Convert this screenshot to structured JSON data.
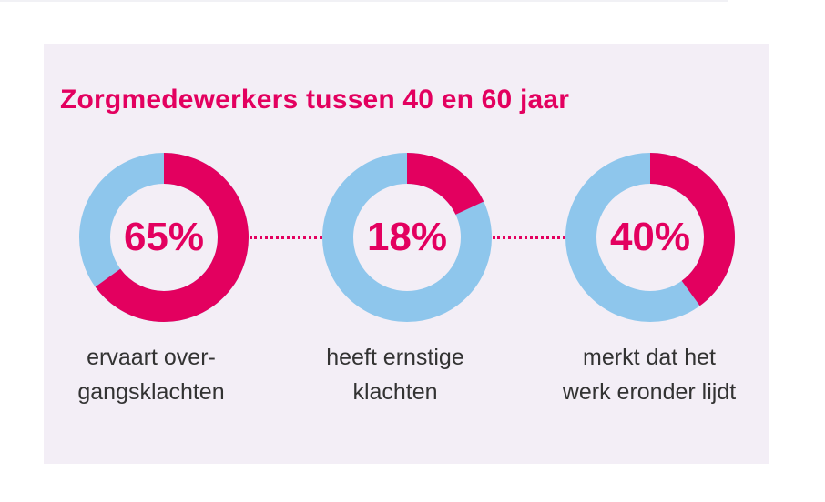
{
  "colors": {
    "accent": "#e3005f",
    "track": "#8ec6ec",
    "background": "#f3eef6",
    "text": "#333333"
  },
  "chart_data": {
    "type": "pie",
    "title": "Zorgmedewerkers tussen 40 en 60 jaar",
    "items": [
      {
        "value": 65,
        "value_label": "65%",
        "label_line1": "ervaart over-",
        "label_line2": "gangsklachten"
      },
      {
        "value": 18,
        "value_label": "18%",
        "label_line1": "heeft ernstige",
        "label_line2": "klachten"
      },
      {
        "value": 40,
        "value_label": "40%",
        "label_line1": "merkt dat het",
        "label_line2": "werk eronder lijdt"
      }
    ]
  }
}
